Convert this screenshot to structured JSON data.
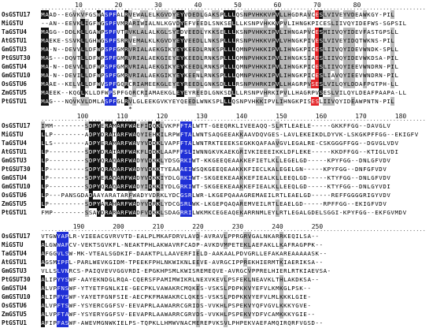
{
  "sequence_names": [
    "OsGSTU17",
    "MiGSTU",
    "TaGSTU4",
    "AtGSTU1",
    "GmGSTU3",
    "PtGSUT30",
    "GmGSTU4",
    "GmGSTU10",
    "OsGSTU6",
    "ZmGSTU5",
    "PtGSTU1"
  ],
  "blocks": [
    {
      "start": 1,
      "ticks": [
        "10",
        "20",
        "30",
        "40",
        "50",
        "60",
        "70",
        "80"
      ],
      "rows": [
        "MAAD--EGVKVFGSWASPFALRVEWALELKGVDYEYVDEDLGAKSPLLLQSNPVHKKVPVLLHGDRAVCESLVIVEYVDEAWKGY-PIL",
        "--AN--EEVKLIGFWGSPFVMRARIWIALNLKGVDYEFVEEDLSNKSELLLKSNPVHKKVPVLIHNGKPICESLIIVQYIDEFWS-SGPSIL",
        "MAGG--DDLKLLGAWPSPFVTRVKLALALKGLSYEDVEEDLYKKSELLLKSNPVHKKIPVLIHNGAPVCESMIIVQYIDEVFASTGPSLL",
        "MAEKE-SSVKLLGHWGSPFSRRVEMALKLKGVDYEYVEEDLLNKSPLLLRSNPVHKKVPVLVHNGKPIVESLVIVEYIDQTWKNS-PIL",
        "MA-N--DEVVLLDFWPSPFGMRVRIALAEKGIKYEYKEEDLRNKSPLLLQMNPVHKKIPVLIHNGKPICESLIIVQYIDEVWNDK-SPLL",
        "MAS---DQVTLLDFWPSPFGMRVRIALAEKGIEYEYKEEDLRNKSPLLLQMNPVHKKIPVLIHNGKSIAESLIIVQYIDEVWKDSA-PIL",
        "MA-N--DEVVLLDFWPSPFGMRVRIALAEKGIKYEYKEEDLRNKSPLLLQMNPVHKKIPVLIHNGKPICESLIIVQYIEEVWNDRN-PIL",
        "MA-N--DEVILLDFWPSPFGMRVRIALAEKGIKYEYKEENLRNKSPLLLQMNPVHKKIPVLIHNGKPICESLIAVQYIEEVWNDRN-PIL",
        "MAAE--KELVLLDFWVSPFGQRCRIAMEEKGLEYEYREEDLGNKSDLLLRSNPVHRKIPVLLHAGRPVSESLVILQYLDDAFPGTPH-LL",
        "MAEEK--KQGLKLLDFWPSPFGQRCRIAMAEKGLEYEYREEDLGNKSDLLLRSNPVHRKIPVLLHAGRPVSESLVILQYLDEAFPAAPA-LL",
        "MAG---NQVKVLDMLASPFGLRVLGLEEKGVKYEYQEEDLWNKSPLLLQSNPVHKKIPVLIHNGKPISESLIIVQYIDEAWPNTN-PIL"
      ],
      "star_at": 23
    },
    {
      "start": 90,
      "ticks": [
        "100",
        "110",
        "120",
        "130",
        "140",
        "150",
        "160",
        "170",
        "180"
      ],
      "rows": [
        "IMM--------SDPYERAMARFWAEFIDQKLVKPFFTALWTT-GEEQRKLIVEEAQQ-SLRTLEAELE-----GKKFFGG--DAVGLV",
        "LLP--------ADPYDRAIARFWAQYIEHKILRPWFTALWNTSAQGEEAKKAAVDQVGES-LAVLEKEIKDLDYVK-LSKGKPFFGG--EKIGFV",
        "LLS--------ADPYERAMARFWAVYVDDKLVAPFFTALWNTRKTEEEKSEGKKQAFAAVGVLEGALRE-CSKGGGFFGG--DGVGLVDV",
        "LP---------SDPYDRAIARFWAKFLDDKLAAPFFSLIWNNGKVKAEKGRIVKIEEEIKKLDFLEKE-----KKDFFGG--KTIGLVDI",
        "LP---------SDPYQRAQARFWADYVDKKLYDSGRKIWT-KKGEEQEAAKKEFIETLKLLEGELGD-----KPYFGG--DNLGFVDV",
        "LP---------SDPYQRAQARFWADYVDKKTYEAAAEIWSQKGEEQEAAKKKFIECLKALEGELGN-----KPYFGG--DNFGFVDV",
        "LP---------SDPYERAQARFWADYVDKKIYDLGRKIWT-SKGEEKEAAKKEFIEALKLLEEQLGD-----KTYFGG--DNLGFVDV",
        "LP---------SDPYQRAQARFWADYIDKKIYDLGRKIWT-SKGEEKEAAKKEFIEALKLLEEQLGD-----KTYFGG--DNLGYVDI",
        "LP---PANSGDADAAYARATARFWADYVDRKLYDCGSRLWR-LKGEPQAAAGREMAEILRTLEAELGD-----REFFGGGGRIGYVDV",
        "LP---------SDPYARAHARFWADYVDRKLYDCGSRLWK-LKGEPQAQAREMVEILRTLEAELGD-----RPFFGG--EKIGFVDV",
        "FMP--------SSAYDRARARFWADFVDKKLSDAGRRILWKMKCEGEAQEKARRNMLEYLRTLEGALGDELSGGI-KPYFGG--EKFGVMDV"
      ],
      "star_at": -1
    },
    {
      "start": 181,
      "ticks": [
        "190",
        "200",
        "210",
        "220",
        "230",
        "240",
        "250"
      ],
      "rows": [
        "VTGWYAPLR-VIEEACGVRVVTD-EALPLMKAFDRVLAVD-AVRAVLPPRGRVGALNKARRKEQILSA--",
        "ALGWWAFCV-VEKTSGVKFL-NEAKTPHLAKWAVRFCADP-AVKDVMPETEKLAEFAKLLKAFRAGPPK--",
        "AFGGVLSW-MK-VTEALSGDKIF-DAAKTPLLAAVERFIELD-AAKAALPDVGRLLEFAKAREAAAAASK--",
        "AGSMIPFL-PARLWEVKGIDM-TPEEKFPHLNKWIKNLEEVE-AVRGCIPPREKHIERMTKIAERIKSA--",
        "VLLSLVNRCS-PAIQVEVVGGVRDI-EPGKHPSMLKWISREMEQVE-AVRGCVPPRELHIERLRTKIAEVSA-",
        "ALIPYYSWF-AAYEKNDGLRQA-CQERSFPAMIMWIKRLNEXVKEVLPSFEKLNEAVKLTHLAKDKSA--",
        "ALVPFNSWF-YTYETFGNLKIE-GECPKLVAWAKRCMQKES-VSKSLPDPKKVYEFVLKMKGLPSK--",
        "ALIPFYSWF-YAYETFGNFSIE-AECPKFMAWAKRCLQKES-VSKSLPDPKKVYEFVLMLKKKLGIE-",
        "ALVPFTSWF-YSYERCGGFSV-EEVAPRLAAWARRCGRIDS-VVKHLPSPEKVYQFVGVLKKKYGVE-",
        "ALVPFTAWF-YSYERYGGFSV-EEVAPRLAAWARRCGRVDS-VVKHLPSPEKVYDFVCAMKKKYGIE--",
        "AFIPFASWF-AWEVMGNWKIELPS-TQPKLLHMWVNACMEREPVKSVLPHPEKVAEFAMQIRQRFVGSD--"
      ],
      "star_at": -1
    }
  ],
  "colors": {
    "identical": "#111111",
    "similar": "#b9b9b9",
    "conserved_motif": "#1f2fd6",
    "catalytic": "#e3262a"
  }
}
